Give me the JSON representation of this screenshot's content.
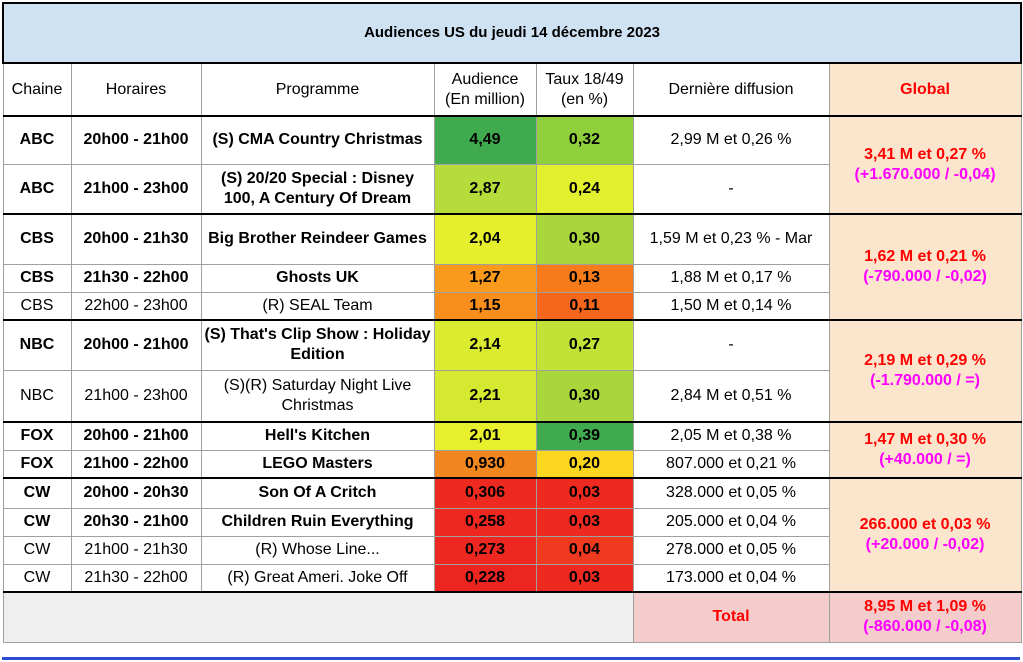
{
  "title": "Audiences US du jeudi 14 décembre 2023",
  "headers": {
    "chaine": "Chaine",
    "horaires": "Horaires",
    "programme": "Programme",
    "audience": "Audience\n(En million)",
    "taux": "Taux 18/49\n(en %)",
    "derniere": "Dernière diffusion",
    "global": "Global"
  },
  "rows": [
    {
      "chaine": "ABC",
      "horaires": "20h00 - 21h00",
      "programme": "(S) CMA Country Christmas",
      "audience": "4,49",
      "taux": "0,32",
      "derniere": "2,99 M et 0,26 %",
      "bold": true,
      "aud_color": "#3faa4e",
      "taux_color": "#8fcf3c"
    },
    {
      "chaine": "ABC",
      "horaires": "21h00 - 23h00",
      "programme": "(S) 20/20 Special : Disney 100, A Century Of Dream",
      "audience": "2,87",
      "taux": "0,24",
      "derniere": "-",
      "bold": true,
      "aud_color": "#b6dc3c",
      "taux_color": "#e3f02f"
    },
    {
      "chaine": "CBS",
      "horaires": "20h00 - 21h30",
      "programme": "Big Brother Reindeer Games",
      "audience": "2,04",
      "taux": "0,30",
      "derniere": "1,59 M et 0,23 % - Mar",
      "bold": true,
      "aud_color": "#e6ef2e",
      "taux_color": "#a9d73b"
    },
    {
      "chaine": "CBS",
      "horaires": "21h30 - 22h00",
      "programme": "Ghosts UK",
      "audience": "1,27",
      "taux": "0,13",
      "derniere": "1,88 M et 0,17 %",
      "bold": true,
      "aud_color": "#f99a1c",
      "taux_color": "#f77b1b"
    },
    {
      "chaine": "CBS",
      "horaires": "22h00 - 23h00",
      "programme": "(R) SEAL Team",
      "audience": "1,15",
      "taux": "0,11",
      "derniere": "1,50 M et 0,14 %",
      "bold": false,
      "aud_color": "#f88f1d",
      "taux_color": "#f4671c"
    },
    {
      "chaine": "NBC",
      "horaires": "20h00 - 21h00",
      "programme": "(S) That's Clip Show : Holiday Edition",
      "audience": "2,14",
      "taux": "0,27",
      "derniere": "-",
      "bold": true,
      "aud_color": "#dbeb2f",
      "taux_color": "#c2e237"
    },
    {
      "chaine": "NBC",
      "horaires": "21h00 - 23h00",
      "programme": "(S)(R) Saturday Night Live Christmas",
      "audience": "2,21",
      "taux": "0,30",
      "derniere": "2,84 M et 0,51 %",
      "bold": false,
      "aud_color": "#d4e930",
      "taux_color": "#a9d73b"
    },
    {
      "chaine": "FOX",
      "horaires": "20h00 - 21h00",
      "programme": "Hell's Kitchen",
      "audience": "2,01",
      "taux": "0,39",
      "derniere": "2,05 M et 0,38 %",
      "bold": true,
      "aud_color": "#e8f02d",
      "taux_color": "#3faa4e"
    },
    {
      "chaine": "FOX",
      "horaires": "21h00 - 22h00",
      "programme": "LEGO Masters",
      "audience": "0,930",
      "taux": "0,20",
      "derniere": "807.000 et 0,21 %",
      "bold": true,
      "aud_color": "#f2861f",
      "taux_color": "#fbd71f"
    },
    {
      "chaine": "CW",
      "horaires": "20h00 - 20h30",
      "programme": "Son Of A Critch",
      "audience": "0,306",
      "taux": "0,03",
      "derniere": "328.000 et 0,05 %",
      "bold": true,
      "aud_color": "#ee2a20",
      "taux_color": "#ee2a20"
    },
    {
      "chaine": "CW",
      "horaires": "20h30 - 21h00",
      "programme": "Children Ruin Everything",
      "audience": "0,258",
      "taux": "0,03",
      "derniere": "205.000 et 0,04 %",
      "bold": true,
      "aud_color": "#ee2720",
      "taux_color": "#ee2a20"
    },
    {
      "chaine": "CW",
      "horaires": "21h00 - 21h30",
      "programme": "(R) Whose Line...",
      "audience": "0,273",
      "taux": "0,04",
      "derniere": "278.000 et 0,05 %",
      "bold": false,
      "aud_color": "#ee2820",
      "taux_color": "#ef3a20"
    },
    {
      "chaine": "CW",
      "horaires": "21h30 - 22h00",
      "programme": "(R) Great Ameri. Joke Off",
      "audience": "0,228",
      "taux": "0,03",
      "derniere": "173.000 et 0,04 %",
      "bold": false,
      "aud_color": "#ed2520",
      "taux_color": "#ee2a20"
    }
  ],
  "globals": {
    "abc": {
      "line1": "3,41 M et 0,27 %",
      "line2": "(+1.670.000 / -0,04)"
    },
    "cbs": {
      "line1": "1,62 M et 0,21 %",
      "line2": "(-790.000 / -0,02)"
    },
    "nbc": {
      "line1": "2,19 M et 0,29 %",
      "line2": "(-1.790.000 / =)"
    },
    "fox": {
      "line1": "1,47 M et 0,30 %",
      "line2": "(+40.000 / =)"
    },
    "cw": {
      "line1": "266.000 et 0,03 %",
      "line2": "(+20.000 / -0,02)"
    }
  },
  "total": {
    "label": "Total",
    "line1": "8,95 M et 1,09 %",
    "line2": "(-860.000 / -0,08)"
  }
}
